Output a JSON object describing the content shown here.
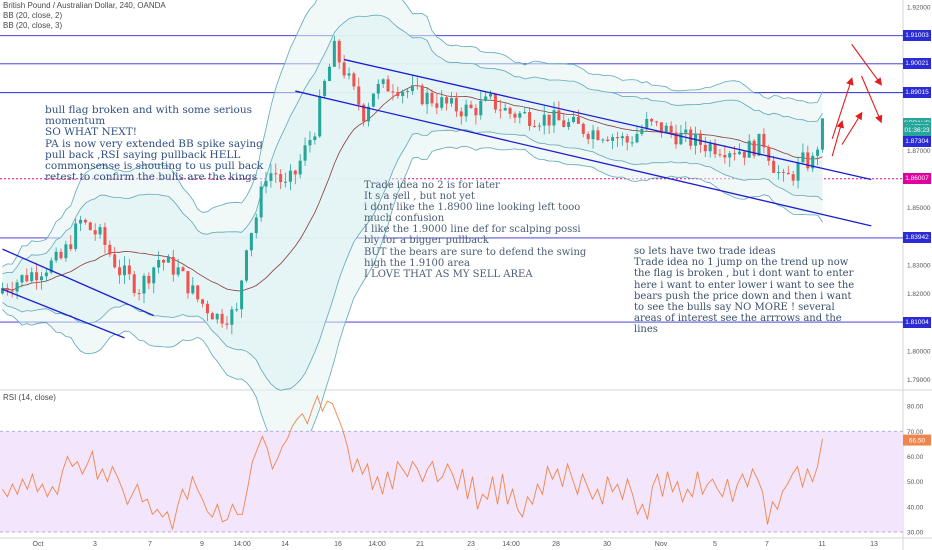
{
  "header": {
    "symbol_line": "British Pound / Australian Dollar, 240, OANDA",
    "indicator_1": "BB (20, close, 2)",
    "indicator_2": "BB (20, close, 3)",
    "rsi_label": "RSI (14, close)"
  },
  "annotations": {
    "note_bull_flag": "bull flag broken and with some serious\nmomentum\nSO WHAT NEXT!\nPA is now very extended BB spike saying\npull back ,RSI saying pullback HELL\ncommonsense is shouting to us pull back\nretest to confirm the bulls are the kings",
    "note_trade2": "Trade idea no 2 is for later\nIt s a sell , but not yet\ni dont like the 1.8900 line looking left tooo\nmuch confusion\nI like the 1.9000 line def for scalping possi\nbly for a bigger pullback\nBUT the bears are sure to defend the swing\nhigh the 1.9100 area\nI LOVE THAT AS MY SELL AREA",
    "note_trade1": "so lets have two trade ideas\nTrade idea no 1 jump on the trend up now\nthe flag is broken , but i dont want to enter\nhere i want to enter lower i want to see the\nbears push the price down and then i want\nto see the bulls say NO MORE ! several\nareas of interest see the arrrows and the\nlines"
  },
  "colors": {
    "candle_up": "#26a69a",
    "candle_down": "#ef5350",
    "level_line": "#2a2ad6",
    "channel_line": "#1d1fd0",
    "bb_line": "#5fa8b8",
    "bb_fill": "#e3f3f3",
    "basis_line": "#8b3b3b",
    "support_dotted": "#e0009d",
    "rsi_line": "#f0854c",
    "rsi_band": "#f3e5fb",
    "arrow": "#e31c1c",
    "price_tag_current": "#26a69a",
    "text_note": "#3d5570",
    "tag_blue": "#2a2ad6",
    "tag_magenta": "#e0009d"
  },
  "price_tags": [
    {
      "label": "1.91003",
      "value": 1.91003,
      "kind": "level"
    },
    {
      "label": "1.90021",
      "value": 1.90021,
      "kind": "level"
    },
    {
      "label": "1.89015",
      "value": 1.89015,
      "kind": "level"
    },
    {
      "label": "GBPAUD",
      "value": 1.8795,
      "kind": "current"
    },
    {
      "label": "1.87797",
      "value": 1.87797,
      "kind": "current"
    },
    {
      "label": "01:36:23",
      "value": 1.8768,
      "kind": "current"
    },
    {
      "label": "1.87304",
      "value": 1.87304,
      "kind": "level"
    },
    {
      "label": "1.86007",
      "value": 1.86007,
      "kind": "support"
    },
    {
      "label": "1.83942",
      "value": 1.83942,
      "kind": "level"
    },
    {
      "label": "1.81004",
      "value": 1.81004,
      "kind": "level"
    }
  ],
  "chart_data": [
    {
      "type": "candlestick",
      "title": "British Pound / Australian Dollar, 240, OANDA",
      "ylim": [
        1.787,
        1.9225
      ],
      "y_ticks": [
        "1.92000",
        "1.91000",
        "1.90000",
        "1.89000",
        "1.88000",
        "1.87000",
        "1.86000",
        "1.85000",
        "1.84000",
        "1.83000",
        "1.82000",
        "1.81000",
        "1.80000",
        "1.79000"
      ],
      "x_ticks": [
        "Oct",
        "3",
        "7",
        "9",
        "14:00",
        "14",
        "16",
        "14:00",
        "21",
        "23",
        "14:00",
        "28",
        "30",
        "Nov",
        "5",
        "7",
        "11",
        "13"
      ],
      "horizontal_levels": [
        1.91003,
        1.90021,
        1.89015,
        1.83942,
        1.81004
      ],
      "support_dotted": 1.86007,
      "current_price": 1.87797,
      "close_path": [
        [
          0,
          1.822
        ],
        [
          6,
          1.827
        ],
        [
          12,
          1.832
        ],
        [
          16,
          1.845
        ],
        [
          20,
          1.84
        ],
        [
          24,
          1.828
        ],
        [
          28,
          1.822
        ],
        [
          32,
          1.832
        ],
        [
          36,
          1.828
        ],
        [
          40,
          1.818
        ],
        [
          44,
          1.812
        ],
        [
          48,
          1.813
        ],
        [
          50,
          1.838
        ],
        [
          52,
          1.847
        ],
        [
          54,
          1.862
        ],
        [
          56,
          1.862
        ],
        [
          58,
          1.857
        ],
        [
          60,
          1.862
        ],
        [
          62,
          1.87
        ],
        [
          64,
          1.878
        ],
        [
          66,
          1.893
        ],
        [
          68,
          1.905
        ],
        [
          70,
          1.898
        ],
        [
          72,
          1.89
        ],
        [
          74,
          1.883
        ],
        [
          76,
          1.891
        ],
        [
          80,
          1.893
        ],
        [
          84,
          1.89
        ],
        [
          88,
          1.888
        ],
        [
          92,
          1.885
        ],
        [
          96,
          1.884
        ],
        [
          100,
          1.887
        ],
        [
          104,
          1.883
        ],
        [
          108,
          1.882
        ],
        [
          112,
          1.881
        ],
        [
          116,
          1.879
        ],
        [
          120,
          1.877
        ],
        [
          124,
          1.876
        ],
        [
          128,
          1.873
        ],
        [
          132,
          1.879
        ],
        [
          136,
          1.877
        ],
        [
          140,
          1.874
        ],
        [
          144,
          1.872
        ],
        [
          148,
          1.871
        ],
        [
          152,
          1.87
        ],
        [
          156,
          1.873
        ],
        [
          158,
          1.865
        ],
        [
          160,
          1.859
        ],
        [
          162,
          1.862
        ],
        [
          164,
          1.866
        ],
        [
          166,
          1.866
        ],
        [
          168,
          1.878
        ]
      ],
      "channels": [
        {
          "name": "upper-left",
          "from": [
            0,
            1.8355
          ],
          "to": [
            31,
            1.8123
          ]
        },
        {
          "name": "lower-left",
          "from": [
            0,
            1.8215
          ],
          "to": [
            25,
            1.8045
          ]
        },
        {
          "name": "upper-main",
          "from": [
            70,
            1.9017
          ],
          "to": [
            178,
            1.8598
          ]
        },
        {
          "name": "lower-main",
          "from": [
            60,
            1.8907
          ],
          "to": [
            178,
            1.8436
          ]
        }
      ],
      "arrows": [
        [
          [
            170,
            1.874
          ],
          [
            174,
            1.895
          ]
        ],
        [
          [
            174,
            1.907
          ],
          [
            180,
            1.893
          ]
        ],
        [
          [
            176,
            1.896
          ],
          [
            180,
            1.88
          ]
        ],
        [
          [
            172,
            1.872
          ],
          [
            176,
            1.883
          ]
        ],
        [
          [
            170,
            1.868
          ],
          [
            172,
            1.88
          ]
        ]
      ]
    },
    {
      "type": "line",
      "title": "RSI (14, close)",
      "ylim": [
        28,
        86
      ],
      "y_ticks": [
        "80.00",
        "70.00",
        "60.00",
        "50.00",
        "40.00",
        "30.00"
      ],
      "band": [
        30,
        70
      ],
      "current_value": 66.5,
      "values": [
        47,
        44,
        49,
        45,
        51,
        47,
        53,
        46,
        49,
        44,
        48,
        45,
        54,
        60,
        56,
        58,
        53,
        57,
        62,
        51,
        55,
        50,
        56,
        52,
        47,
        41,
        45,
        49,
        42,
        43,
        37,
        39,
        36,
        38,
        31,
        40,
        47,
        43,
        52,
        47,
        43,
        38,
        36,
        41,
        34,
        35,
        41,
        37,
        37,
        47,
        58,
        63,
        68,
        63,
        55,
        59,
        64,
        67,
        72,
        75,
        77,
        73,
        79,
        84,
        78,
        82,
        81,
        76,
        71,
        64,
        54,
        59,
        53,
        57,
        47,
        52,
        45,
        54,
        47,
        58,
        55,
        52,
        58,
        55,
        50,
        55,
        58,
        50,
        52,
        57,
        53,
        47,
        55,
        43,
        52,
        39,
        45,
        43,
        52,
        41,
        53,
        41,
        47,
        39,
        36,
        44,
        41,
        49,
        45,
        56,
        51,
        55,
        48,
        57,
        51,
        45,
        53,
        48,
        43,
        47,
        41,
        52,
        46,
        49,
        43,
        51,
        45,
        37,
        41,
        35,
        48,
        53,
        44,
        54,
        46,
        50,
        42,
        47,
        44,
        54,
        45,
        49,
        51,
        47,
        44,
        51,
        42,
        49,
        53,
        48,
        55,
        51,
        46,
        33,
        42,
        39,
        46,
        49,
        53,
        56,
        48,
        55,
        50,
        56,
        67
      ]
    }
  ]
}
